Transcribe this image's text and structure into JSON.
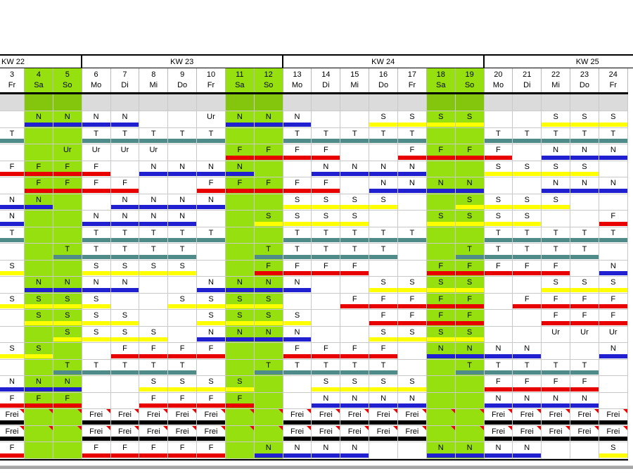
{
  "colors": {
    "weekend_green": "#97E010",
    "spacer_weekend_green": "#84C50E",
    "spacer_gray": "#DBDBDB",
    "grid_line": "#C9C9C9",
    "triangle_red": "#EE0000",
    "bottom_line_gray": "#A5A5A5"
  },
  "bar_colors": {
    "N": "#2020D0",
    "T": "#4F8B89",
    "F": "#E80000",
    "S": "#FFFF00",
    "Frei": "#000000"
  },
  "sheet": {
    "week_groups": [
      {
        "label": "KW 22"
      },
      {
        "label": "KW 23"
      },
      {
        "label": "KW 24"
      },
      {
        "label": "KW 25"
      }
    ],
    "days": [
      {
        "num": "3",
        "wd": "Fr",
        "weekend": false
      },
      {
        "num": "4",
        "wd": "Sa",
        "weekend": true
      },
      {
        "num": "5",
        "wd": "So",
        "weekend": true
      },
      {
        "num": "6",
        "wd": "Mo",
        "weekend": false
      },
      {
        "num": "7",
        "wd": "Di",
        "weekend": false
      },
      {
        "num": "8",
        "wd": "Mi",
        "weekend": false
      },
      {
        "num": "9",
        "wd": "Do",
        "weekend": false
      },
      {
        "num": "10",
        "wd": "Fr",
        "weekend": false
      },
      {
        "num": "11",
        "wd": "Sa",
        "weekend": true
      },
      {
        "num": "12",
        "wd": "So",
        "weekend": true
      },
      {
        "num": "13",
        "wd": "Mo",
        "weekend": false
      },
      {
        "num": "14",
        "wd": "Di",
        "weekend": false
      },
      {
        "num": "15",
        "wd": "Mi",
        "weekend": false
      },
      {
        "num": "16",
        "wd": "Do",
        "weekend": false
      },
      {
        "num": "17",
        "wd": "Fr",
        "weekend": false
      },
      {
        "num": "18",
        "wd": "Sa",
        "weekend": true
      },
      {
        "num": "19",
        "wd": "So",
        "weekend": true
      },
      {
        "num": "20",
        "wd": "Mo",
        "weekend": false
      },
      {
        "num": "21",
        "wd": "Di",
        "weekend": false
      },
      {
        "num": "22",
        "wd": "Mi",
        "weekend": false
      },
      {
        "num": "23",
        "wd": "Do",
        "weekend": false
      },
      {
        "num": "24",
        "wd": "Fr",
        "weekend": false
      }
    ],
    "rows": [
      [
        "",
        "N",
        "N",
        "N",
        "N",
        "",
        "",
        "Ur",
        "N",
        "N",
        "N",
        "",
        "",
        "S",
        "S",
        "S",
        "S",
        "",
        "",
        "S",
        "S",
        "S"
      ],
      [
        "T",
        "",
        "",
        "T",
        "T",
        "T",
        "T",
        "T",
        "",
        "",
        "T",
        "T",
        "T",
        "T",
        "T",
        "",
        "",
        "T",
        "T",
        "T",
        "T",
        "T"
      ],
      [
        "",
        "",
        "Ur",
        "Ur",
        "Ur",
        "Ur",
        "",
        "",
        "F",
        "F",
        "F",
        "F",
        "",
        "",
        "F",
        "F",
        "F",
        "F",
        "",
        "N",
        "N",
        "N"
      ],
      [
        "F",
        "F",
        "F",
        "F",
        "",
        "N",
        "N",
        "N",
        "N",
        "",
        "",
        "N",
        "N",
        "N",
        "N",
        "",
        "",
        "S",
        "S",
        "S",
        "S",
        ""
      ],
      [
        "",
        "F",
        "F",
        "F",
        "F",
        "",
        "",
        "F",
        "F",
        "F",
        "F",
        "F",
        "",
        "N",
        "N",
        "N",
        "N",
        "",
        "",
        "N",
        "N",
        "N"
      ],
      [
        "N",
        "N",
        "",
        "",
        "N",
        "N",
        "N",
        "N",
        "",
        "",
        "S",
        "S",
        "S",
        "S",
        "",
        "",
        "S",
        "S",
        "S",
        "S",
        "",
        ""
      ],
      [
        "N",
        "",
        "",
        "N",
        "N",
        "N",
        "N",
        "",
        "",
        "S",
        "S",
        "S",
        "S",
        "",
        "",
        "S",
        "S",
        "S",
        "S",
        "",
        "",
        "F"
      ],
      [
        "T",
        "",
        "",
        "T",
        "T",
        "T",
        "T",
        "T",
        "",
        "",
        "T",
        "T",
        "T",
        "T",
        "T",
        "",
        "",
        "T",
        "T",
        "T",
        "T",
        "T"
      ],
      [
        "",
        "",
        "T",
        "T",
        "T",
        "T",
        "T",
        "",
        "",
        "T",
        "T",
        "T",
        "T",
        "T",
        "",
        "",
        "T",
        "T",
        "T",
        "T",
        "T",
        ""
      ],
      [
        "S",
        "",
        "",
        "S",
        "S",
        "S",
        "S",
        "",
        "",
        "F",
        "F",
        "F",
        "F",
        "",
        "",
        "F",
        "F",
        "F",
        "F",
        "F",
        "",
        "N"
      ],
      [
        "",
        "N",
        "N",
        "N",
        "N",
        "",
        "",
        "N",
        "N",
        "N",
        "N",
        "",
        "",
        "S",
        "S",
        "S",
        "S",
        "",
        "",
        "S",
        "S",
        "S"
      ],
      [
        "S",
        "S",
        "S",
        "S",
        "",
        "",
        "S",
        "S",
        "S",
        "S",
        "",
        "",
        "F",
        "F",
        "F",
        "F",
        "F",
        "",
        "F",
        "F",
        "F",
        "F"
      ],
      [
        "",
        "S",
        "S",
        "S",
        "S",
        "",
        "",
        "S",
        "S",
        "S",
        "S",
        "",
        "",
        "F",
        "F",
        "F",
        "F",
        "",
        "",
        "F",
        "F",
        "F"
      ],
      [
        "",
        "",
        "S",
        "S",
        "S",
        "S",
        "",
        "N",
        "N",
        "N",
        "N",
        "",
        "",
        "S",
        "S",
        "S",
        "S",
        "",
        "",
        "Ur",
        "Ur",
        "Ur"
      ],
      [
        "S",
        "S",
        "",
        "",
        "F",
        "F",
        "F",
        "F",
        "",
        "",
        "F",
        "F",
        "F",
        "F",
        "",
        "N",
        "N",
        "N",
        "N",
        "",
        "",
        "N"
      ],
      [
        "",
        "",
        "T",
        "T",
        "T",
        "T",
        "T",
        "",
        "",
        "T",
        "T",
        "T",
        "T",
        "T",
        "",
        "",
        "T",
        "T",
        "T",
        "T",
        "T",
        ""
      ],
      [
        "N",
        "N",
        "N",
        "",
        "",
        "S",
        "S",
        "S",
        "S",
        "",
        "",
        "S",
        "S",
        "S",
        "S",
        "",
        "",
        "F",
        "F",
        "F",
        "F",
        ""
      ],
      [
        "F",
        "F",
        "F",
        "",
        "",
        "F",
        "F",
        "F",
        "F",
        "",
        "",
        "N",
        "N",
        "N",
        "N",
        "",
        "",
        "N",
        "N",
        "N",
        "N",
        ""
      ],
      [
        "Frei",
        "tri",
        "tri",
        "Frei",
        "Frei",
        "Frei",
        "Frei",
        "Frei",
        "tri",
        "tri",
        "Frei",
        "Frei",
        "Frei",
        "Frei",
        "Frei",
        "tri",
        "tri",
        "Frei",
        "Frei",
        "Frei",
        "Frei",
        "Frei"
      ],
      [
        "Frei",
        "tri",
        "tri",
        "Frei",
        "Frei",
        "Frei",
        "Frei",
        "Frei",
        "tri",
        "tri",
        "Frei",
        "Frei",
        "Frei",
        "Frei",
        "Frei",
        "tri",
        "tri",
        "Frei",
        "Frei",
        "Frei",
        "Frei",
        "Frei"
      ],
      [
        "F",
        "",
        "",
        "F",
        "F",
        "F",
        "F",
        "F",
        "",
        "N",
        "N",
        "N",
        "N",
        "",
        "",
        "N",
        "N",
        "N",
        "N",
        "",
        "",
        "S"
      ]
    ]
  }
}
